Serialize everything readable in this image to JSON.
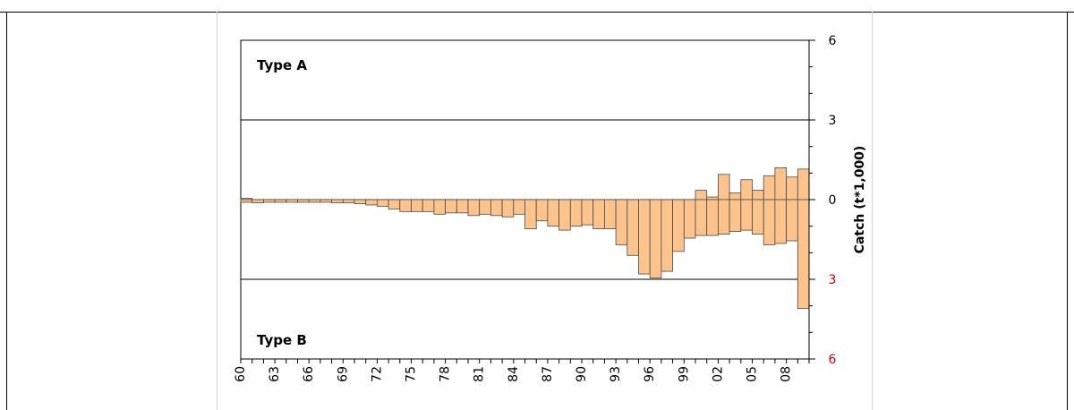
{
  "chart_data": {
    "type": "bar",
    "title": "",
    "xlabel": "",
    "ylabel": "Catch (t*1,000)",
    "ylim": [
      -6,
      6
    ],
    "annotations": {
      "top_label": "Type A",
      "bottom_label": "Type B"
    },
    "y_ticks": [
      {
        "value": 6,
        "label": "6",
        "color": "#000000"
      },
      {
        "value": 3,
        "label": "3",
        "color": "#000000"
      },
      {
        "value": 0,
        "label": "0",
        "color": "#000000"
      },
      {
        "value": -3,
        "label": "3",
        "color": "#cc0000"
      },
      {
        "value": -6,
        "label": "6",
        "color": "#cc0000"
      }
    ],
    "x_tick_labels": [
      "60",
      "63",
      "66",
      "69",
      "72",
      "75",
      "78",
      "81",
      "84",
      "87",
      "90",
      "93",
      "96",
      "99",
      "02",
      "05",
      "08"
    ],
    "grid_lines_at": [
      3,
      0,
      -3
    ],
    "bar_color": "#fcc48c",
    "bar_edge_color": "#4a4a4a",
    "series": [
      {
        "name": "Type A",
        "values": [
          0.05,
          0,
          0,
          0,
          0,
          0,
          0,
          0,
          0,
          0,
          0,
          0,
          0,
          0,
          0,
          0,
          0,
          0,
          0,
          0,
          0,
          0,
          0,
          0,
          0,
          0,
          0,
          0,
          0,
          0,
          0,
          0,
          0,
          0,
          0,
          0,
          0,
          0,
          0,
          0,
          0.35,
          0.1,
          0.95,
          0.25,
          0.75,
          0.35,
          0.9,
          1.2,
          0.85,
          1.15
        ]
      },
      {
        "name": "Type B",
        "values": [
          -0.1,
          -0.12,
          -0.1,
          -0.1,
          -0.1,
          -0.1,
          -0.1,
          -0.1,
          -0.12,
          -0.12,
          -0.15,
          -0.2,
          -0.25,
          -0.35,
          -0.45,
          -0.45,
          -0.45,
          -0.55,
          -0.5,
          -0.5,
          -0.6,
          -0.55,
          -0.6,
          -0.65,
          -0.55,
          -1.1,
          -0.8,
          -1.0,
          -1.15,
          -1.0,
          -0.95,
          -1.1,
          -1.1,
          -1.7,
          -2.1,
          -2.8,
          -2.95,
          -2.7,
          -1.95,
          -1.45,
          -1.35,
          -1.35,
          -1.3,
          -1.2,
          -1.15,
          -1.3,
          -1.7,
          -1.65,
          -1.55,
          -4.1
        ]
      }
    ]
  }
}
